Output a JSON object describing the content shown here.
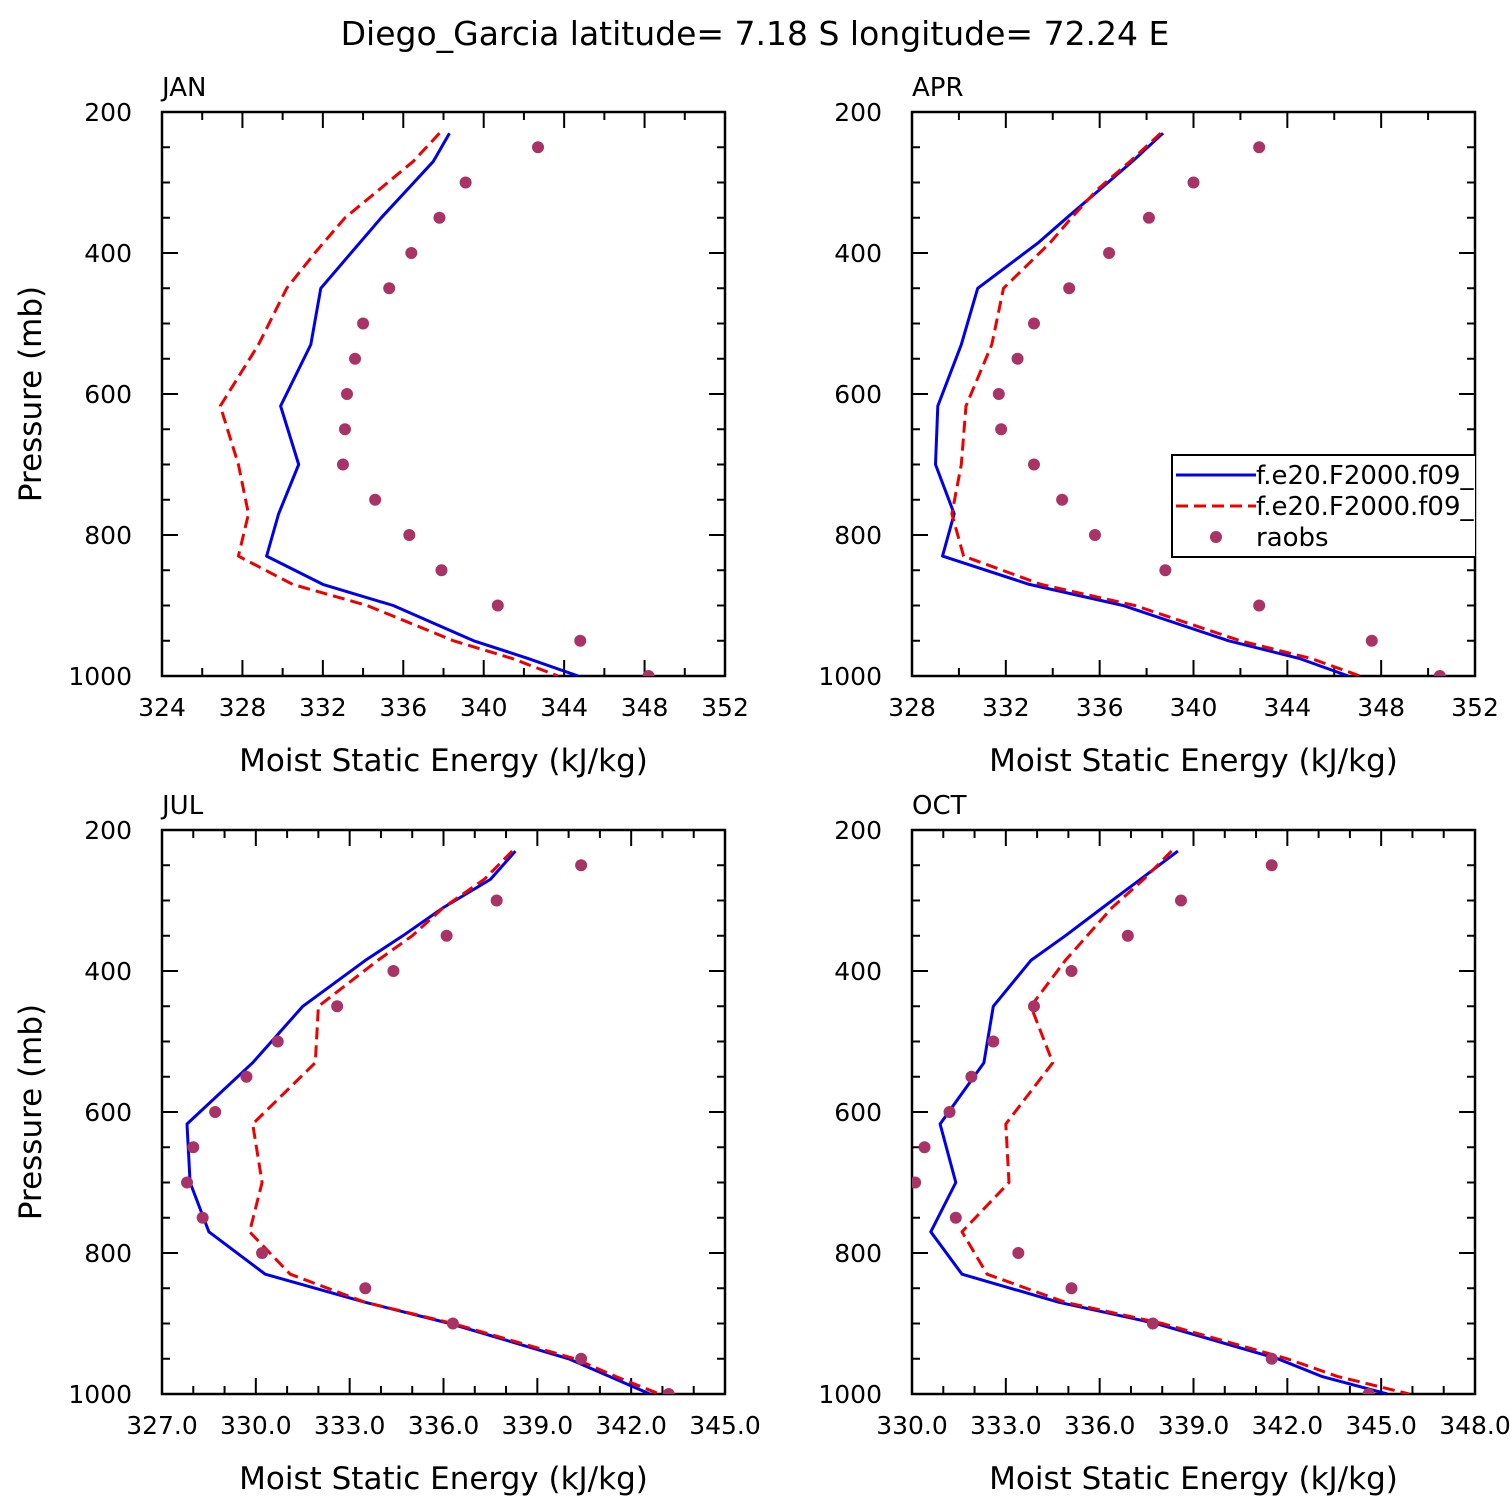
{
  "title": "Diego_Garcia  latitude= 7.18 S longitude= 72.24 E",
  "colors": {
    "series1": "#0000ee",
    "series2": "#ee0000",
    "obs": "#aa3366",
    "axis": "#000000"
  },
  "legend": {
    "placement": "inside-right (APR panel)",
    "entries": [
      {
        "label": "f.e20.F2000.f09_",
        "style": "solid",
        "color": "#0000ee"
      },
      {
        "label": "f.e20.F2000.f09_",
        "style": "dashed",
        "color": "#ee0000"
      },
      {
        "label": "raobs",
        "style": "marker",
        "color": "#aa3366"
      }
    ]
  },
  "chart_data": [
    {
      "type": "line",
      "panel": "JAN",
      "xlabel": "Moist Static Energy (kJ/kg)",
      "ylabel": "Pressure (mb)",
      "xlim": [
        324,
        352
      ],
      "xticks": [
        324,
        328,
        332,
        336,
        340,
        344,
        348,
        352
      ],
      "xtick_labels": [
        "324",
        "328",
        "332",
        "336",
        "340",
        "344",
        "348",
        "352"
      ],
      "xminor": 2,
      "ylim": [
        200,
        1000
      ],
      "yticks": [
        200,
        400,
        600,
        800,
        1000
      ],
      "ytick_labels": [
        "200",
        "400",
        "600",
        "800",
        "1000"
      ],
      "yminor": 50,
      "model_p": [
        230,
        270,
        310,
        350,
        400,
        450,
        530,
        617,
        700,
        770,
        830,
        870,
        900,
        950,
        975,
        1000
      ],
      "series": [
        {
          "name": "f.e20.F2000.f09_",
          "style": "solid",
          "values": [
            338.3,
            337.5,
            336.2,
            334.9,
            333.4,
            331.9,
            331.4,
            329.9,
            330.8,
            329.8,
            329.2,
            332.0,
            335.5,
            339.5,
            342.2,
            344.7
          ]
        },
        {
          "name": "f.e20.F2000.f09_",
          "style": "dashed",
          "values": [
            337.8,
            336.5,
            334.8,
            333.1,
            331.6,
            330.2,
            328.8,
            326.9,
            327.8,
            328.3,
            327.8,
            330.5,
            334.2,
            338.5,
            341.4,
            343.7
          ]
        }
      ],
      "obs_p": [
        250,
        300,
        350,
        400,
        450,
        500,
        550,
        600,
        650,
        700,
        750,
        800,
        850,
        900,
        950,
        1000
      ],
      "obs": [
        342.7,
        339.1,
        337.8,
        336.4,
        335.3,
        334.0,
        333.6,
        333.2,
        333.1,
        333.0,
        334.6,
        336.3,
        337.9,
        340.7,
        344.8,
        348.2
      ]
    },
    {
      "type": "line",
      "panel": "APR",
      "xlabel": "Moist Static Energy (kJ/kg)",
      "ylabel": "",
      "xlim": [
        328,
        352
      ],
      "xticks": [
        328,
        332,
        336,
        340,
        344,
        348,
        352
      ],
      "xtick_labels": [
        "328",
        "332",
        "336",
        "340",
        "344",
        "348",
        "352"
      ],
      "xminor": 2,
      "ylim": [
        200,
        1000
      ],
      "yticks": [
        200,
        400,
        600,
        800,
        1000
      ],
      "ytick_labels": [
        "200",
        "400",
        "600",
        "800",
        "1000"
      ],
      "yminor": 50,
      "model_p": [
        230,
        270,
        310,
        350,
        385,
        450,
        530,
        617,
        700,
        770,
        830,
        870,
        900,
        950,
        975,
        1000
      ],
      "series": [
        {
          "name": "f.e20.F2000.f09_",
          "style": "solid",
          "values": [
            338.7,
            337.4,
            336.0,
            334.6,
            333.4,
            330.8,
            330.1,
            329.1,
            329.0,
            329.8,
            329.3,
            333.0,
            337.0,
            341.5,
            344.5,
            346.6
          ]
        },
        {
          "name": "f.e20.F2000.f09_",
          "style": "dashed",
          "values": [
            338.6,
            337.3,
            335.9,
            334.8,
            333.9,
            331.9,
            331.4,
            330.3,
            330.1,
            329.7,
            330.2,
            333.5,
            337.5,
            342.0,
            345.0,
            347.1
          ]
        }
      ],
      "obs_p": [
        250,
        300,
        350,
        400,
        450,
        500,
        550,
        600,
        650,
        700,
        750,
        800,
        850,
        900,
        950,
        1000
      ],
      "obs": [
        342.8,
        340.0,
        338.1,
        336.4,
        334.7,
        333.2,
        332.5,
        331.7,
        331.8,
        333.2,
        334.4,
        335.8,
        338.8,
        342.8,
        347.6,
        350.5
      ]
    },
    {
      "type": "line",
      "panel": "JUL",
      "xlabel": "Moist Static Energy (kJ/kg)",
      "ylabel": "Pressure (mb)",
      "xlim": [
        327,
        345
      ],
      "xticks": [
        327,
        330,
        333,
        336,
        339,
        342,
        345
      ],
      "xtick_labels": [
        "327.0",
        "330.0",
        "333.0",
        "336.0",
        "339.0",
        "342.0",
        "345.0"
      ],
      "xminor": 1,
      "ylim": [
        200,
        1000
      ],
      "yticks": [
        200,
        400,
        600,
        800,
        1000
      ],
      "ytick_labels": [
        "200",
        "400",
        "600",
        "800",
        "1000"
      ],
      "yminor": 50,
      "model_p": [
        230,
        270,
        310,
        350,
        385,
        450,
        530,
        617,
        700,
        770,
        830,
        870,
        900,
        950,
        975,
        1000
      ],
      "series": [
        {
          "name": "f.e20.F2000.f09_",
          "style": "solid",
          "values": [
            338.3,
            337.5,
            336.0,
            334.7,
            333.5,
            331.5,
            329.9,
            327.8,
            327.9,
            328.5,
            330.3,
            333.5,
            336.2,
            340.0,
            341.3,
            342.6
          ]
        },
        {
          "name": "f.e20.F2000.f09_",
          "style": "dashed",
          "values": [
            338.2,
            337.3,
            336.0,
            335.0,
            333.9,
            332.0,
            331.9,
            329.9,
            330.2,
            329.8,
            331.1,
            333.5,
            336.3,
            340.2,
            341.5,
            342.9
          ]
        }
      ],
      "obs_p": [
        250,
        300,
        350,
        400,
        450,
        500,
        550,
        600,
        650,
        700,
        750,
        800,
        850,
        900,
        950,
        1000
      ],
      "obs": [
        340.4,
        337.7,
        336.1,
        334.4,
        332.6,
        330.7,
        329.7,
        328.7,
        328.0,
        327.8,
        328.3,
        330.2,
        333.5,
        336.3,
        340.4,
        343.2
      ]
    },
    {
      "type": "line",
      "panel": "OCT",
      "xlabel": "Moist Static Energy (kJ/kg)",
      "ylabel": "",
      "xlim": [
        330,
        348
      ],
      "xticks": [
        330,
        333,
        336,
        339,
        342,
        345,
        348
      ],
      "xtick_labels": [
        "330.0",
        "333.0",
        "336.0",
        "339.0",
        "342.0",
        "345.0",
        "348.0"
      ],
      "xminor": 1,
      "ylim": [
        200,
        1000
      ],
      "yticks": [
        200,
        400,
        600,
        800,
        1000
      ],
      "ytick_labels": [
        "200",
        "400",
        "600",
        "800",
        "1000"
      ],
      "yminor": 50,
      "model_p": [
        230,
        270,
        310,
        350,
        385,
        450,
        530,
        617,
        700,
        770,
        830,
        870,
        900,
        950,
        975,
        1000
      ],
      "series": [
        {
          "name": "f.e20.F2000.f09_",
          "style": "solid",
          "values": [
            338.5,
            337.3,
            336.1,
            334.9,
            333.8,
            332.6,
            332.3,
            330.9,
            331.4,
            330.6,
            331.6,
            334.7,
            337.8,
            341.7,
            343.1,
            345.2
          ]
        },
        {
          "name": "f.e20.F2000.f09_",
          "style": "dashed",
          "values": [
            338.3,
            337.4,
            336.4,
            335.6,
            334.9,
            333.8,
            334.5,
            333.0,
            333.1,
            331.6,
            332.4,
            334.9,
            338.0,
            342.0,
            343.6,
            345.9
          ]
        }
      ],
      "obs_p": [
        250,
        300,
        350,
        400,
        450,
        500,
        550,
        600,
        650,
        700,
        750,
        800,
        850,
        900,
        950,
        1000
      ],
      "obs": [
        341.5,
        338.6,
        336.9,
        335.1,
        333.9,
        332.6,
        331.9,
        331.2,
        330.4,
        330.1,
        331.4,
        333.4,
        335.1,
        337.7,
        341.5,
        344.6
      ]
    }
  ]
}
